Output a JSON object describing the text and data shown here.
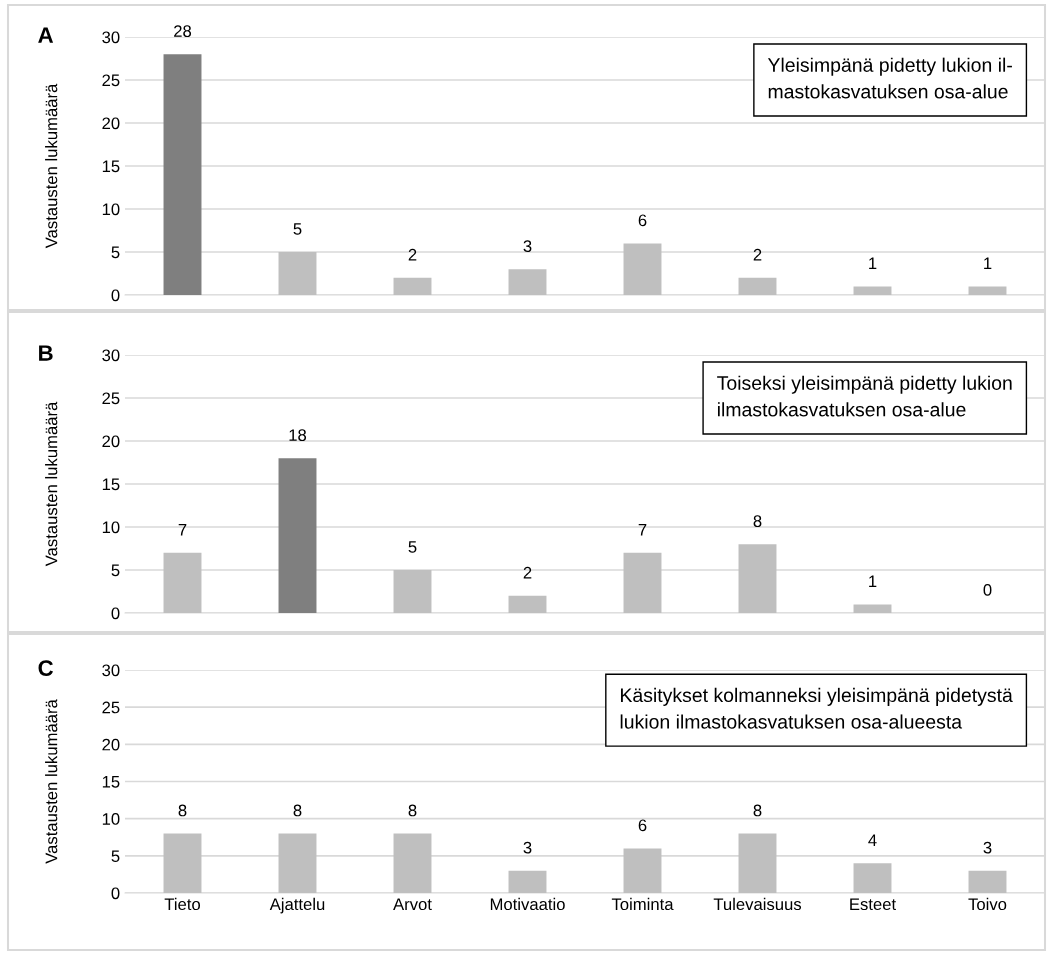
{
  "chart_data": [
    {
      "type": "bar",
      "title": "Yleisimpänä pidetty lukion il-\nmastokasvatuksen osa-alue",
      "ylabel": "Vastausten lukumäärä",
      "annotations": [
        "A"
      ],
      "categories": [
        null,
        null,
        null,
        null,
        null,
        null,
        null,
        null
      ],
      "values": [
        28,
        5,
        2,
        3,
        6,
        2,
        1,
        1
      ],
      "colors": [
        "#7f7f7f",
        "#bfbfbf",
        "#bfbfbf",
        "#bfbfbf",
        "#bfbfbf",
        "#bfbfbf",
        "#bfbfbf",
        "#bfbfbf"
      ],
      "ylim": [
        0,
        30
      ],
      "yticks": [
        0,
        5,
        10,
        15,
        20,
        25,
        30
      ],
      "grid": "y",
      "data_labels": true,
      "tick_labels": "y"
    },
    {
      "type": "bar",
      "title": "Toiseksi yleisimpänä pidetty lukion\nilmastokasvatuksen osa-alue",
      "ylabel": "Vastausten lukumäärä",
      "annotations": [
        "B"
      ],
      "categories": [
        null,
        null,
        null,
        null,
        null,
        null,
        null,
        null
      ],
      "values": [
        7,
        18,
        5,
        2,
        7,
        8,
        1,
        0
      ],
      "colors": [
        "#bfbfbf",
        "#7f7f7f",
        "#bfbfbf",
        "#bfbfbf",
        "#bfbfbf",
        "#bfbfbf",
        "#bfbfbf",
        "#bfbfbf"
      ],
      "ylim": [
        0,
        30
      ],
      "yticks": [
        0,
        5,
        10,
        15,
        20,
        25,
        30
      ],
      "grid": "y",
      "data_labels": true,
      "tick_labels": "y"
    },
    {
      "type": "bar",
      "title": "Käsitykset kolmanneksi yleisimpänä pidetystä\nlukion ilmastokasvatuksen osa-alueesta",
      "ylabel": "Vastausten lukumäärä",
      "annotations": [
        "C"
      ],
      "categories": [
        "Tieto",
        "Ajattelu",
        "Arvot",
        "Motivaatio",
        "Toiminta",
        "Tulevaisuus",
        "Esteet",
        "Toivo"
      ],
      "values": [
        8,
        8,
        8,
        3,
        6,
        8,
        4,
        3
      ],
      "colors": [
        "#bfbfbf",
        "#bfbfbf",
        "#bfbfbf",
        "#bfbfbf",
        "#bfbfbf",
        "#bfbfbf",
        "#bfbfbf",
        "#bfbfbf"
      ],
      "ylim": [
        0,
        30
      ],
      "yticks": [
        0,
        5,
        10,
        15,
        20,
        25,
        30
      ],
      "grid": "y",
      "data_labels": true
    }
  ]
}
